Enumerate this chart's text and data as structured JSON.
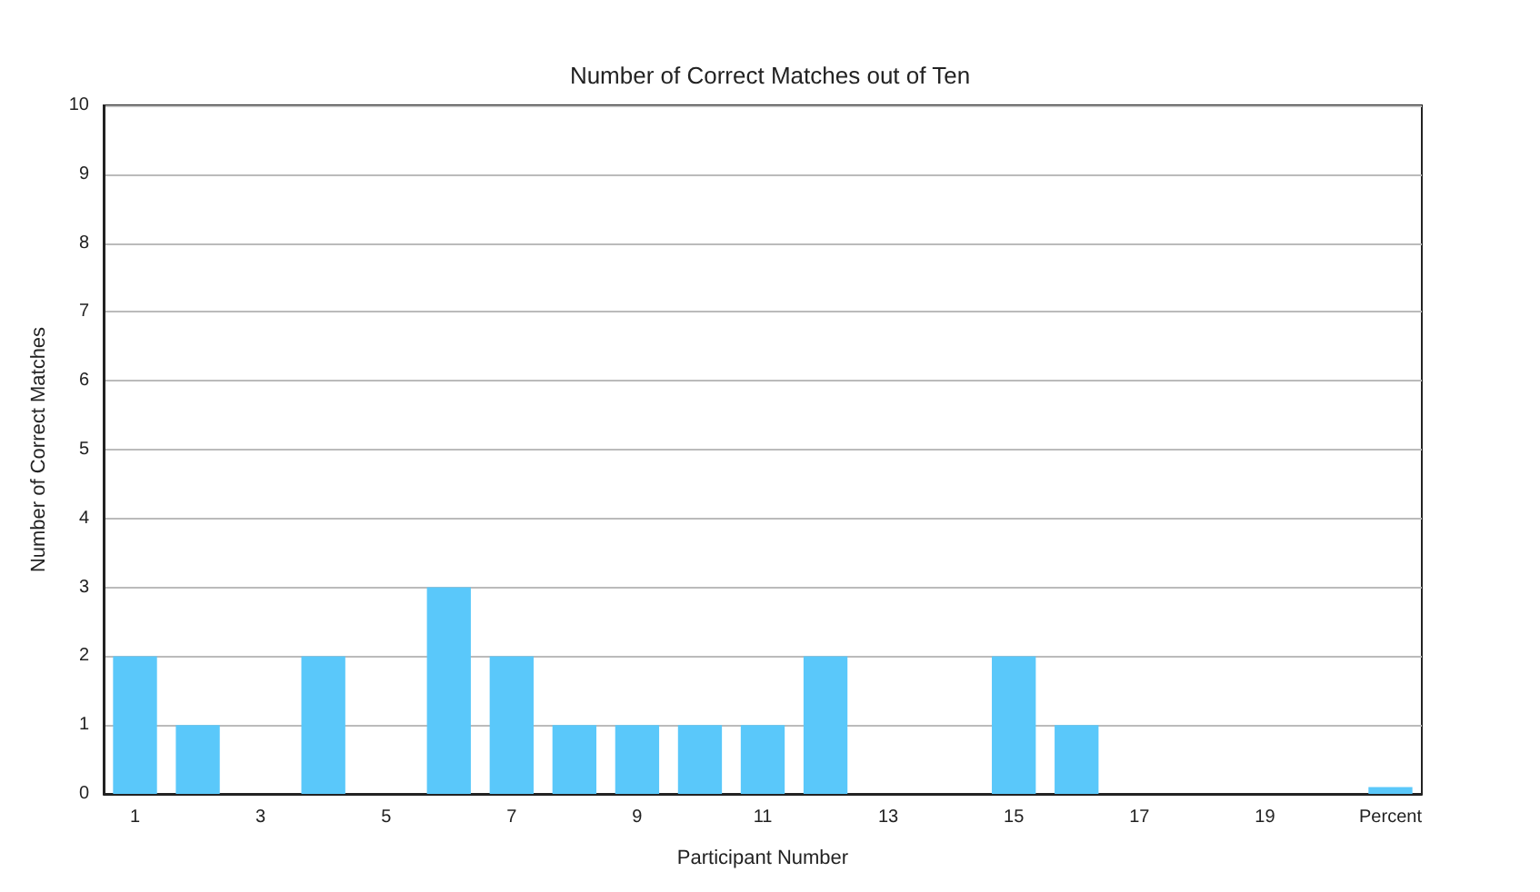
{
  "chart_data": {
    "type": "bar",
    "title": "Number of Correct Matches out of Ten",
    "xlabel": "Participant Number",
    "ylabel": "Number of Correct Matches",
    "categories": [
      "1",
      null,
      "3",
      null,
      "5",
      null,
      "7",
      null,
      "9",
      null,
      "11",
      null,
      "13",
      null,
      "15",
      null,
      "17",
      null,
      "19",
      null,
      "Percent"
    ],
    "values": [
      2,
      1,
      0,
      2,
      0,
      3,
      2,
      1,
      1,
      1,
      1,
      2,
      0,
      0,
      2,
      1,
      0,
      0,
      0,
      0,
      0.1
    ],
    "color": "#5ac8fa",
    "ylim": [
      0,
      10
    ],
    "yticks": [
      0,
      1,
      2,
      3,
      4,
      5,
      6,
      7,
      8,
      9,
      10
    ],
    "grid": "y"
  }
}
